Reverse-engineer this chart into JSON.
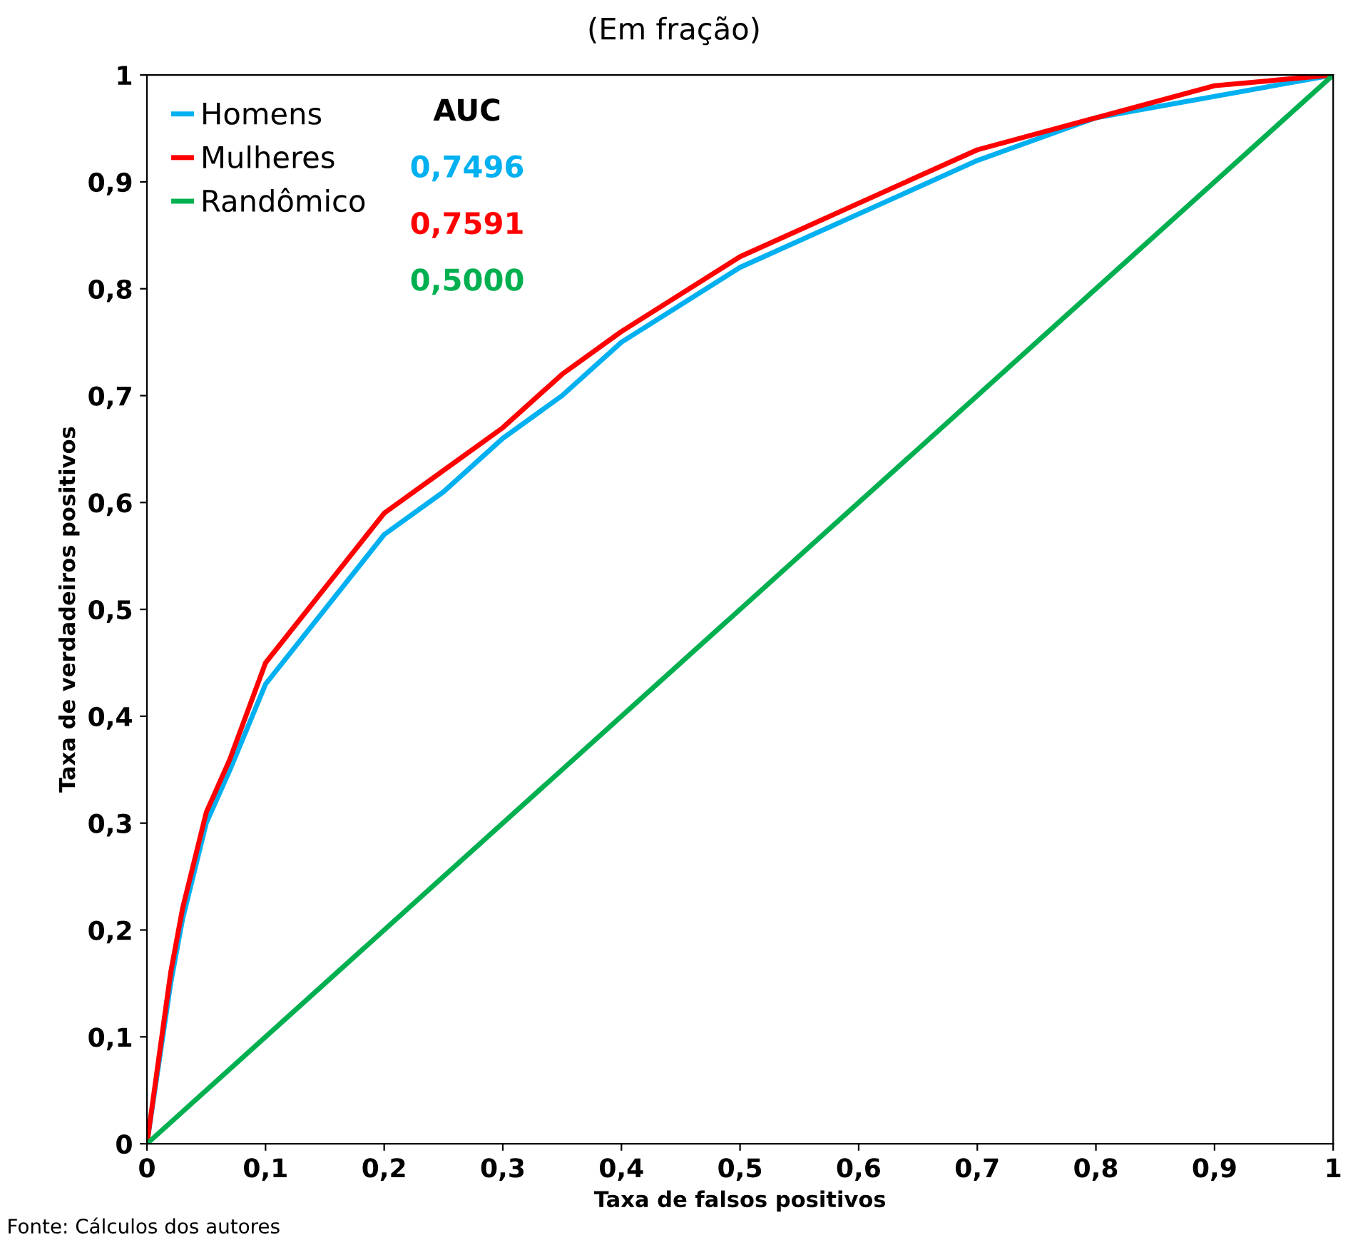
{
  "chart_data": {
    "type": "line",
    "subtitle": "(Em fração)",
    "xlabel": "Taxa de falsos positivos",
    "ylabel": "Taxa de verdadeiros positivos",
    "xlim": [
      0,
      1
    ],
    "ylim": [
      0,
      1
    ],
    "xticks": [
      0,
      {
        "value": 0.1,
        "label": "0,1"
      },
      {
        "value": 0.2,
        "label": "0,2"
      },
      {
        "value": 0.3,
        "label": "0,3"
      },
      {
        "value": 0.4,
        "label": "0,4"
      },
      {
        "value": 0.5,
        "label": "0,5"
      },
      {
        "value": 0.6,
        "label": "0,6"
      },
      {
        "value": 0.7,
        "label": "0,7"
      },
      {
        "value": 0.8,
        "label": "0,8"
      },
      {
        "value": 0.9,
        "label": "0,9"
      },
      1
    ],
    "yticks": [
      0,
      {
        "value": 0.1,
        "label": "0,1"
      },
      {
        "value": 0.2,
        "label": "0,2"
      },
      {
        "value": 0.3,
        "label": "0,3"
      },
      {
        "value": 0.4,
        "label": "0,4"
      },
      {
        "value": 0.5,
        "label": "0,5"
      },
      {
        "value": 0.6,
        "label": "0,6"
      },
      {
        "value": 0.7,
        "label": "0,7"
      },
      {
        "value": 0.8,
        "label": "0,8"
      },
      {
        "value": 0.9,
        "label": "0,9"
      },
      1
    ],
    "grid": false,
    "legend": "top left",
    "marker": "none",
    "line_style": "solid",
    "series": [
      {
        "name": "Homens",
        "color": "#00b0f0",
        "x": [
          0,
          0.02,
          0.03,
          0.05,
          0.07,
          0.1,
          0.15,
          0.2,
          0.25,
          0.3,
          0.35,
          0.4,
          0.5,
          0.6,
          0.7,
          0.8,
          0.9,
          1
        ],
        "values": [
          0,
          0.15,
          0.21,
          0.3,
          0.35,
          0.43,
          0.5,
          0.57,
          0.61,
          0.66,
          0.7,
          0.75,
          0.82,
          0.87,
          0.92,
          0.96,
          0.98,
          1
        ]
      },
      {
        "name": "Mulheres",
        "color": "#ff0000",
        "x": [
          0,
          0.01,
          0.02,
          0.03,
          0.05,
          0.07,
          0.1,
          0.15,
          0.2,
          0.25,
          0.3,
          0.35,
          0.4,
          0.5,
          0.6,
          0.7,
          0.8,
          0.9,
          1
        ],
        "values": [
          0,
          0.08,
          0.16,
          0.22,
          0.31,
          0.36,
          0.45,
          0.52,
          0.59,
          0.63,
          0.67,
          0.72,
          0.76,
          0.83,
          0.88,
          0.93,
          0.96,
          0.99,
          1
        ]
      },
      {
        "name": "Randômico",
        "color": "#00b050",
        "x": [
          0,
          1
        ],
        "values": [
          0,
          1
        ]
      }
    ],
    "annotations": [
      "AUC",
      "0,7496",
      "0,7591",
      "0,5000",
      "Fonte: Cálculos dos autores"
    ]
  }
}
